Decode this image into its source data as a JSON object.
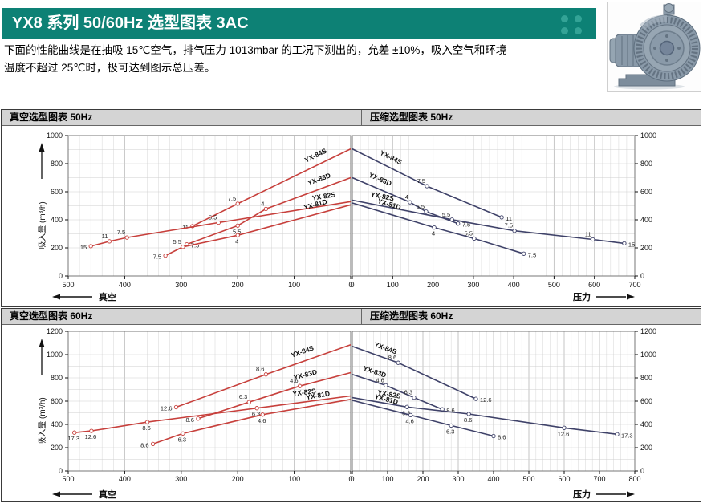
{
  "header": {
    "title": "YX8 系列 50/60Hz 选型图表 3AC",
    "bar_color": "#0d8175",
    "dot_color": "#33a396"
  },
  "intro": {
    "line1": "下面的性能曲线是在抽吸 15℃空气，排气压力 1013mbar 的工况下测出的，允差 ±10%，吸入空气和环境",
    "line2": "温度不超过 25℃时，极可达到图示总压差。"
  },
  "product_image": {
    "name": "side-channel-blower-photo"
  },
  "colors": {
    "vacuum_series": "#c7403c",
    "pressure_series": "#3f4269",
    "grid_minor": "#dcdcdc",
    "grid_major": "#c0c0c0",
    "grid_horizontal": "#d0d0d0",
    "plot_border": "#777777",
    "axis": "#111111"
  },
  "chart_data": [
    {
      "id": "vacuum-50hz",
      "type": "line",
      "title": "真空选型图表 50Hz",
      "side": "vacuum",
      "xlabel": "真空",
      "ylabel": "吸入量 (m³/h)",
      "xlim": [
        0,
        500
      ],
      "ylim": [
        0,
        1000
      ],
      "x_minor": 20,
      "x_major": 100,
      "y_minor": 100,
      "x_ticks": [
        500,
        400,
        300,
        200,
        100,
        0
      ],
      "y_ticks": [
        0,
        200,
        400,
        600,
        800,
        1000
      ],
      "series": [
        {
          "name": "YX-84S",
          "name_x": 55,
          "points": [
            [
              0,
              905
            ],
            [
              200,
              515,
              "7.5",
              "a"
            ],
            [
              280,
              355,
              "11",
              "l"
            ]
          ]
        },
        {
          "name": "YX-83D",
          "name_x": 50,
          "points": [
            [
              0,
              700
            ],
            [
              150,
              478,
              "4",
              "a"
            ],
            [
              200,
              358,
              "5.5",
              "b"
            ],
            [
              290,
              225,
              "7.5",
              "r"
            ]
          ]
        },
        {
          "name": "YX-82S",
          "name_x": 45,
          "points": [
            [
              0,
              530
            ],
            [
              234,
              380,
              "5.5",
              "a"
            ],
            [
              396,
              274,
              "7.5",
              "a"
            ],
            [
              427,
              246,
              "11",
              "a"
            ],
            [
              460,
              212,
              "15",
              "l"
            ]
          ]
        },
        {
          "name": "YX-81D",
          "name_x": 58,
          "points": [
            [
              0,
              507
            ],
            [
              200,
              290,
              "4",
              "b"
            ],
            [
              297,
              207,
              "5.5",
              "a"
            ],
            [
              328,
              145,
              "7.5",
              "l"
            ]
          ]
        }
      ]
    },
    {
      "id": "pressure-50hz",
      "type": "line",
      "title": "压缩选型图表 50Hz",
      "side": "pressure",
      "xlabel": "压力",
      "ylabel": "吸入量 (m³/h)",
      "xlim": [
        0,
        700
      ],
      "ylim": [
        0,
        1000
      ],
      "x_minor": 20,
      "x_major": 100,
      "y_minor": 100,
      "x_ticks": [
        0,
        100,
        200,
        300,
        400,
        500,
        600,
        700
      ],
      "y_ticks": [
        0,
        200,
        400,
        600,
        800,
        1000
      ],
      "series": [
        {
          "name": "YX-84S",
          "name_x": 85,
          "points": [
            [
              0,
              905
            ],
            [
              185,
              640,
              "7.5",
              "a"
            ],
            [
              370,
              418,
              "11",
              "r"
            ]
          ]
        },
        {
          "name": "YX-83D",
          "name_x": 60,
          "points": [
            [
              0,
              700
            ],
            [
              143,
              525,
              "4",
              "a"
            ],
            [
              183,
              458,
              "5.5",
              "a"
            ],
            [
              262,
              373,
              "7.5",
              "r"
            ]
          ]
        },
        {
          "name": "YX-82S",
          "name_x": 70,
          "points": [
            [
              0,
              540
            ],
            [
              247,
              401,
              "5.5",
              "a"
            ],
            [
              402,
              322,
              "7.5",
              "a"
            ],
            [
              596,
              260,
              "11",
              "a"
            ],
            [
              674,
              232,
              "15",
              "r"
            ]
          ]
        },
        {
          "name": "YX-81D",
          "name_x": 85,
          "points": [
            [
              0,
              520
            ],
            [
              203,
              345,
              "4",
              "b"
            ],
            [
              302,
              266,
              "5.5",
              "a"
            ],
            [
              425,
              158,
              "7.5",
              "r"
            ]
          ]
        }
      ]
    },
    {
      "id": "vacuum-60hz",
      "type": "line",
      "title": "真空选型图表 60Hz",
      "side": "vacuum",
      "xlabel": "真空",
      "ylabel": "吸入量 (m³/h)",
      "xlim": [
        0,
        500
      ],
      "ylim": [
        0,
        1200
      ],
      "x_minor": 20,
      "x_major": 100,
      "y_minor": 100,
      "x_ticks": [
        500,
        400,
        300,
        200,
        100,
        0
      ],
      "y_ticks": [
        0,
        200,
        400,
        600,
        800,
        1000,
        1200
      ],
      "series": [
        {
          "name": "YX-84S",
          "name_x": 80,
          "points": [
            [
              0,
              1085
            ],
            [
              150,
              830,
              "8.6",
              "a"
            ],
            [
              309,
              548,
              "12.6",
              "l"
            ]
          ]
        },
        {
          "name": "YX-83D",
          "name_x": 76,
          "points": [
            [
              0,
              845
            ],
            [
              90,
              730,
              "4.6",
              "a"
            ],
            [
              180,
              592,
              "6.3",
              "a"
            ],
            [
              270,
              450,
              "8.6",
              "l"
            ]
          ]
        },
        {
          "name": "YX-82S",
          "name_x": 80,
          "points": [
            [
              0,
              645
            ],
            [
              166,
              540,
              "6.3",
              "b"
            ],
            [
              360,
              420,
              "8.6",
              "b"
            ],
            [
              459,
              344,
              "12.6",
              "b"
            ],
            [
              489,
              330,
              "17.3",
              "b"
            ]
          ]
        },
        {
          "name": "YX-81D",
          "name_x": 55,
          "points": [
            [
              0,
              615
            ],
            [
              156,
              484,
              "4.6",
              "b"
            ],
            [
              297,
              322,
              "6.3",
              "b"
            ],
            [
              350,
              232,
              "8.6",
              "l"
            ]
          ]
        }
      ]
    },
    {
      "id": "pressure-60hz",
      "type": "line",
      "title": "压缩选型图表 60Hz",
      "side": "pressure",
      "xlabel": "压力",
      "ylabel": "吸入量 (m³/h)",
      "xlim": [
        0,
        800
      ],
      "ylim": [
        0,
        1200
      ],
      "x_minor": 20,
      "x_major": 100,
      "y_minor": 100,
      "x_ticks": [
        0,
        100,
        200,
        300,
        400,
        500,
        600,
        700,
        800
      ],
      "y_ticks": [
        0,
        200,
        400,
        600,
        800,
        1000,
        1200
      ],
      "series": [
        {
          "name": "YX-84S",
          "name_x": 85,
          "points": [
            [
              0,
              1070
            ],
            [
              130,
              930,
              "8.6",
              "a"
            ],
            [
              350,
              620,
              "12.6",
              "r"
            ]
          ]
        },
        {
          "name": "YX-83D",
          "name_x": 55,
          "points": [
            [
              0,
              830
            ],
            [
              95,
              735,
              "4.6",
              "a"
            ],
            [
              175,
              630,
              "6.3",
              "a"
            ],
            [
              255,
              530,
              "8.6",
              "r"
            ]
          ]
        },
        {
          "name": "YX-82S",
          "name_x": 100,
          "points": [
            [
              0,
              630
            ],
            [
              155,
              550,
              "6.3",
              "b"
            ],
            [
              330,
              490,
              "8.6",
              "b"
            ],
            [
              600,
              370,
              "12.6",
              "b"
            ],
            [
              750,
              315,
              "17.3",
              "r"
            ]
          ]
        },
        {
          "name": "YX-81D",
          "name_x": 90,
          "points": [
            [
              0,
              607
            ],
            [
              165,
              480,
              "4.6",
              "b"
            ],
            [
              280,
              390,
              "6.3",
              "b"
            ],
            [
              400,
              300,
              "8.6",
              "r"
            ]
          ]
        }
      ]
    }
  ]
}
